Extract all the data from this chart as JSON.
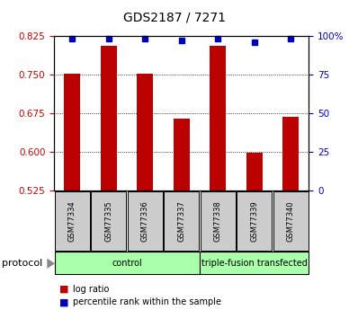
{
  "title": "GDS2187 / 7271",
  "samples": [
    "GSM77334",
    "GSM77335",
    "GSM77336",
    "GSM77337",
    "GSM77338",
    "GSM77339",
    "GSM77340"
  ],
  "log_ratio": [
    0.752,
    0.805,
    0.752,
    0.665,
    0.805,
    0.598,
    0.668
  ],
  "percentile_rank": [
    98,
    98,
    98,
    97,
    98,
    96,
    98
  ],
  "ylim_left": [
    0.525,
    0.825
  ],
  "ylim_right": [
    0,
    100
  ],
  "yticks_left": [
    0.525,
    0.6,
    0.675,
    0.75,
    0.825
  ],
  "yticks_right": [
    0,
    25,
    50,
    75,
    100
  ],
  "bar_color": "#bb0000",
  "dot_color": "#0000bb",
  "bar_bottom": 0.525,
  "control_count": 4,
  "group_labels": [
    "control",
    "triple-fusion transfected"
  ],
  "group_color": "#aaffaa",
  "protocol_label": "protocol",
  "legend_entries": [
    "log ratio",
    "percentile rank within the sample"
  ],
  "legend_colors": [
    "#bb0000",
    "#0000bb"
  ],
  "grid_color": "#000000",
  "left_tick_color": "#cc0000",
  "right_tick_color": "#0000cc",
  "sample_box_color": "#cccccc",
  "title_fontsize": 10,
  "tick_fontsize": 7.5,
  "sample_fontsize": 6,
  "legend_fontsize": 7,
  "protocol_fontsize": 8,
  "group_fontsize": 7
}
